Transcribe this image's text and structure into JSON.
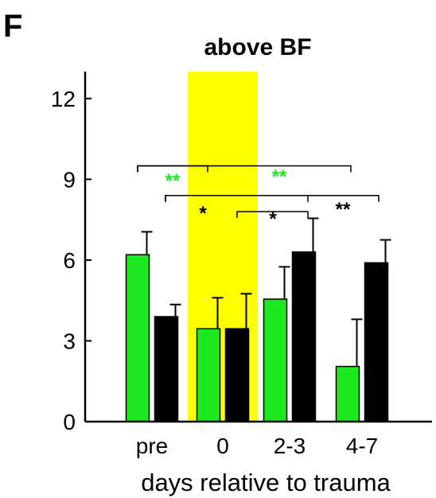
{
  "panel_label": "F",
  "chart_data": {
    "type": "bar",
    "title": "above BF",
    "xlabel": "days relative to trauma",
    "ylabel": "",
    "categories": [
      "pre",
      "0",
      "2-3",
      "4-7"
    ],
    "ylim": [
      0,
      13
    ],
    "yticks": [
      0,
      3,
      6,
      9,
      12
    ],
    "grid": false,
    "highlighted_category": "0",
    "series": [
      {
        "color": "#1ee81e",
        "values": [
          6.2,
          3.45,
          4.55,
          2.05
        ],
        "error": [
          0.85,
          1.15,
          1.2,
          1.75
        ]
      },
      {
        "color": "#000000",
        "values": [
          3.9,
          3.45,
          6.3,
          5.9
        ],
        "error": [
          0.45,
          1.3,
          1.25,
          0.85
        ]
      }
    ],
    "highlight_color": "#ffff00",
    "significance": [
      {
        "from": "pre",
        "to": "0",
        "series": 0,
        "label": "**",
        "color": "#1ee81e"
      },
      {
        "from": "pre",
        "to": "4-7",
        "series": 0,
        "label": "**",
        "color": "#1ee81e"
      },
      {
        "from": "pre",
        "to": "2-3",
        "series": 1,
        "label": "*",
        "color": "#000000"
      },
      {
        "from": "pre",
        "to": "4-7",
        "series": 1,
        "label": "**",
        "color": "#000000"
      },
      {
        "from": "0",
        "to": "2-3",
        "series": 1,
        "label": "*",
        "color": "#000000"
      }
    ]
  }
}
